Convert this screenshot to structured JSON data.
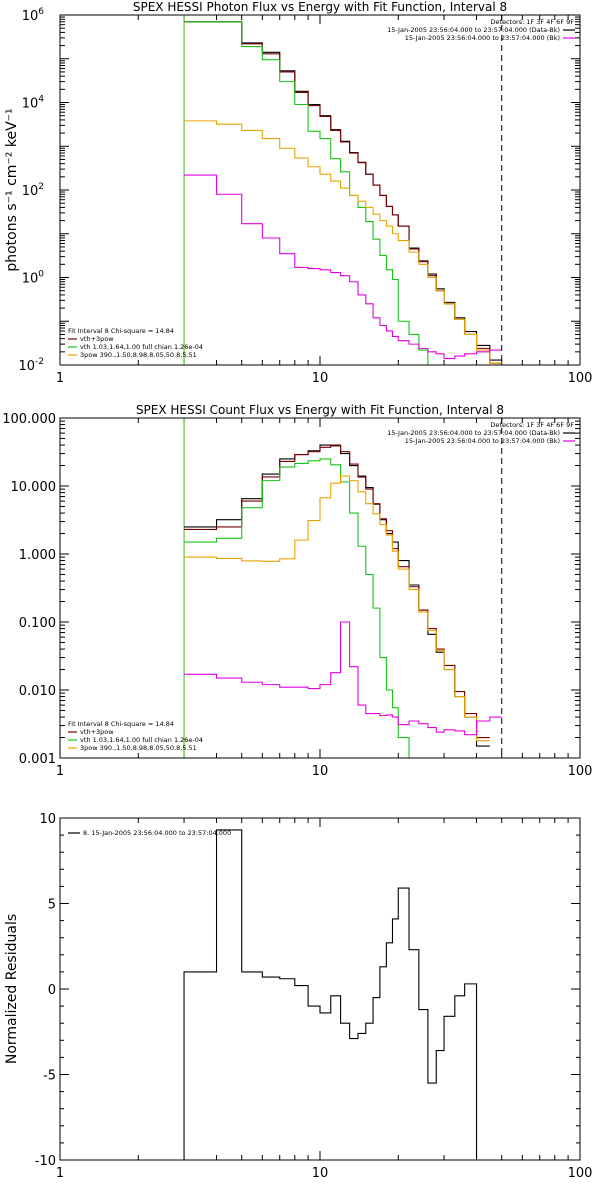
{
  "chart_data": [
    {
      "type": "line",
      "step": true,
      "title": "SPEX HESSI Photon Flux vs Energy with Fit Function, Interval 8",
      "ylabel": "photons s⁻¹ cm⁻² keV⁻¹",
      "xscale": "log",
      "yscale": "log",
      "xlim": [
        1,
        100
      ],
      "ylim": [
        0.01,
        1000000
      ],
      "xticks": [
        {
          "v": 1,
          "label": "1"
        },
        {
          "v": 10,
          "label": "10"
        },
        {
          "v": 100,
          "label": "100"
        }
      ],
      "yticks": [
        {
          "v": 0.01,
          "label": "10",
          "sup": "-2"
        },
        {
          "v": 1,
          "label": "10",
          "sup": "0"
        },
        {
          "v": 100,
          "label": "10",
          "sup": "2"
        },
        {
          "v": 10000,
          "label": "10",
          "sup": "4"
        },
        {
          "v": 1000000,
          "label": "10",
          "sup": "6"
        }
      ],
      "vlines": [
        {
          "x": 3,
          "style": "dotted",
          "color": "#000000"
        },
        {
          "x": 3,
          "style": "solid",
          "color": "#17c417"
        },
        {
          "x": 3,
          "style": "dotted",
          "color": "#e8a400"
        },
        {
          "x": 50,
          "style": "dashed",
          "color": "#000000"
        }
      ],
      "edges": [
        3,
        4,
        5,
        6,
        7,
        8,
        9,
        10,
        11,
        12,
        13,
        14,
        15,
        16,
        17,
        18,
        19,
        20,
        22,
        24,
        26,
        28,
        30,
        33,
        36,
        40,
        45,
        50
      ],
      "series": [
        {
          "name": "data",
          "color": "#000000",
          "values": [
            700000,
            700000,
            230000,
            140000,
            53000,
            18000,
            9000,
            5000,
            2400,
            1300,
            720,
            430,
            230,
            130,
            75,
            42,
            27,
            15,
            4.7,
            2.4,
            1.2,
            0.55,
            0.27,
            0.12,
            0.058,
            0.028,
            0.013
          ]
        },
        {
          "name": "vth+3pow",
          "color": "#7a0000",
          "values": [
            700000,
            700000,
            220000,
            130000,
            50000,
            17000,
            8500,
            4800,
            2300,
            1250,
            700,
            420,
            230,
            130,
            75,
            42,
            27,
            15,
            4.5,
            2.3,
            1.1,
            0.5,
            0.25,
            0.11,
            0.05,
            0.024,
            0.011
          ]
        },
        {
          "name": "vth",
          "color": "#17c417",
          "values": [
            700000,
            700000,
            190000,
            95000,
            30000,
            9000,
            2200,
            1500,
            520,
            260,
            75,
            40,
            19,
            7.5,
            3.2,
            1.5,
            0.9,
            0.1,
            0.05,
            0.022,
            0.01
          ]
        },
        {
          "name": "3pow",
          "color": "#e8a400",
          "values": [
            3800,
            3200,
            2300,
            1500,
            900,
            540,
            340,
            230,
            160,
            110,
            75,
            55,
            40,
            28,
            20,
            15,
            10,
            7,
            3.8,
            2.0,
            1.0,
            0.5,
            0.25,
            0.11,
            0.05,
            0.022,
            0.011
          ]
        },
        {
          "name": "background",
          "color": "#e400e4",
          "values": [
            220,
            80,
            17,
            8,
            3.5,
            1.7,
            1.6,
            1.5,
            1.3,
            1.1,
            0.8,
            0.4,
            0.25,
            0.12,
            0.08,
            0.06,
            0.045,
            0.036,
            0.03,
            0.024,
            0.02,
            0.018,
            0.014,
            0.016,
            0.018,
            0.02,
            0.022
          ]
        }
      ],
      "legend_top": {
        "title": "Detectors: 1F 3F 4F 6F 9F",
        "entries": [
          {
            "text": "15-Jan-2005 23:56:04.000 to 23:57:04.000 (Data-Bk)",
            "color": "#000000"
          },
          {
            "text": "15-Jan-2005 23:56:04.000 to 23:57:04.000 (Bk)",
            "color": "#e400e4"
          }
        ]
      },
      "legend_bottom": {
        "title": "Fit Interval 8   Chi-square = 14.84",
        "entries": [
          {
            "text": "vth+3pow",
            "color": "#7a0000"
          },
          {
            "text": "vth 1.03,1.64,1.00  full chian 1.26e-04",
            "color": "#17c417"
          },
          {
            "text": "3pow 390.,1.50,8.98,8.05,50.8,5.51",
            "color": "#e8a400"
          }
        ]
      }
    },
    {
      "type": "line",
      "step": true,
      "title": "SPEX HESSI Count Flux vs Energy with Fit Function, Interval 8",
      "ylabel": "",
      "xscale": "log",
      "yscale": "log",
      "xlim": [
        1,
        100
      ],
      "ylim": [
        0.001,
        100
      ],
      "xticks": [
        {
          "v": 1,
          "label": "1"
        },
        {
          "v": 10,
          "label": "10"
        },
        {
          "v": 100,
          "label": "100"
        }
      ],
      "yticks": [
        {
          "v": 0.001,
          "label": "0.001"
        },
        {
          "v": 0.01,
          "label": "0.010"
        },
        {
          "v": 0.1,
          "label": "0.100"
        },
        {
          "v": 1,
          "label": "1.000"
        },
        {
          "v": 10,
          "label": "10.000"
        },
        {
          "v": 100,
          "label": "100.000"
        }
      ],
      "vlines": [
        {
          "x": 3,
          "style": "dotted",
          "color": "#000000"
        },
        {
          "x": 3,
          "style": "solid",
          "color": "#17c417"
        },
        {
          "x": 3,
          "style": "dotted",
          "color": "#e8a400"
        },
        {
          "x": 50,
          "style": "dashed",
          "color": "#000000"
        }
      ],
      "edges": [
        3,
        4,
        5,
        6,
        7,
        8,
        9,
        10,
        11,
        12,
        13,
        14,
        15,
        16,
        17,
        18,
        19,
        20,
        22,
        24,
        26,
        28,
        30,
        33,
        36,
        40,
        45,
        50
      ],
      "series": [
        {
          "name": "data",
          "color": "#000000",
          "values": [
            2.5,
            3.2,
            6.5,
            15,
            25,
            29,
            33,
            40,
            39,
            30,
            20,
            14,
            9.5,
            5.4,
            3.2,
            2.0,
            1.5,
            0.8,
            0.35,
            0.15,
            0.066,
            0.036,
            0.02,
            0.008,
            0.004,
            0.0015
          ]
        },
        {
          "name": "vth+3pow",
          "color": "#7a0000",
          "values": [
            2.3,
            2.5,
            6.0,
            13.6,
            23,
            29,
            32,
            37,
            40,
            32,
            21,
            13.5,
            9,
            5.5,
            3.3,
            2.2,
            1.2,
            0.65,
            0.33,
            0.15,
            0.08,
            0.04,
            0.023,
            0.0095,
            0.0045,
            0.002
          ]
        },
        {
          "name": "vth",
          "color": "#17c417",
          "values": [
            1.5,
            1.7,
            4.8,
            12,
            19,
            21.5,
            23.5,
            25,
            20.5,
            11.5,
            4,
            1.3,
            0.5,
            0.16,
            0.03,
            0.01,
            0.0055,
            0.002,
            0.001
          ]
        },
        {
          "name": "3pow",
          "color": "#e8a400",
          "values": [
            0.9,
            0.86,
            0.79,
            0.78,
            0.85,
            1.6,
            3.1,
            6.7,
            11,
            14,
            12,
            8.2,
            5.5,
            3.9,
            2.7,
            1.9,
            1.1,
            0.6,
            0.3,
            0.14,
            0.075,
            0.038,
            0.02,
            0.008,
            0.004,
            0.0018
          ]
        },
        {
          "name": "background",
          "color": "#e400e4",
          "values": [
            0.017,
            0.015,
            0.013,
            0.012,
            0.011,
            0.011,
            0.0105,
            0.012,
            0.018,
            0.1,
            0.022,
            0.006,
            0.0045,
            0.0045,
            0.0042,
            0.0043,
            0.004,
            0.0031,
            0.0035,
            0.0032,
            0.0028,
            0.0024,
            0.0026,
            0.0025,
            0.0022,
            0.0035,
            0.004
          ]
        }
      ],
      "legend_top": {
        "title": "Detectors: 1F 3F 4F 6F 9F",
        "entries": [
          {
            "text": "15-Jan-2005 23:56:04.000 to 23:57:04.000 (Data-Bk)",
            "color": "#000000"
          },
          {
            "text": "15-Jan-2005 23:56:04.000 to 23:57:04.000 (Bk)",
            "color": "#e400e4"
          }
        ]
      },
      "legend_bottom": {
        "title": "Fit Interval 8   Chi-square = 14.84",
        "entries": [
          {
            "text": "vth+3pow",
            "color": "#7a0000"
          },
          {
            "text": "vth 1.03,1.64,1.00  full chian 1.26e-04",
            "color": "#17c417"
          },
          {
            "text": "3pow 390.,1.50,8.98,8.05,50.8,5.51",
            "color": "#e8a400"
          }
        ]
      }
    },
    {
      "type": "line",
      "step": true,
      "title": "",
      "ylabel": "Normalized Residuals",
      "xscale": "log",
      "yscale": "linear",
      "xlim": [
        1,
        100
      ],
      "ylim": [
        -10,
        10
      ],
      "xticks": [
        {
          "v": 1,
          "label": "1"
        },
        {
          "v": 10,
          "label": "10"
        },
        {
          "v": 100,
          "label": "100"
        }
      ],
      "yticks": [
        {
          "v": -10,
          "label": "-10"
        },
        {
          "v": -5,
          "label": "-5"
        },
        {
          "v": 0,
          "label": "0"
        },
        {
          "v": 5,
          "label": "5"
        },
        {
          "v": 10,
          "label": "10"
        }
      ],
      "vlines": [],
      "edges": [
        3,
        4,
        5,
        6,
        7,
        8,
        9,
        10,
        11,
        12,
        13,
        14,
        15,
        16,
        17,
        18,
        19,
        20,
        22,
        24,
        26,
        28,
        30,
        33,
        36,
        40,
        45,
        50
      ],
      "series": [
        {
          "name": "residuals",
          "color": "#000000",
          "values": [
            1.0,
            9.3,
            1.0,
            0.7,
            0.6,
            0.2,
            -1.0,
            -1.4,
            -0.4,
            -2.0,
            -2.9,
            -2.6,
            -2.0,
            -0.5,
            1.3,
            2.7,
            4.1,
            5.9,
            2.3,
            -1.2,
            -5.5,
            -3.6,
            -1.6,
            -0.4,
            0.3
          ]
        }
      ],
      "series_close": {
        "start": -10,
        "end": -10
      },
      "legend_top": {
        "title": "",
        "entries": [
          {
            "text": "8. 15-Jan-2005 23:56:04.000 to 23:57:04.000",
            "color": "#000000"
          }
        ]
      },
      "legend_bottom": null
    }
  ]
}
